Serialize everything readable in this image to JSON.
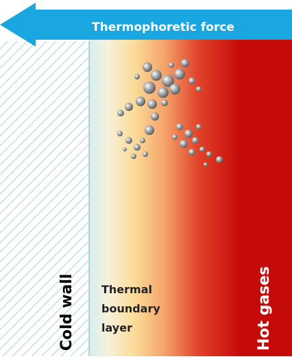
{
  "arrow": {
    "label": "Thermophoretic force"
  },
  "wall": {
    "label": "Cold wall"
  },
  "boundary_layer": {
    "lines": [
      "Thermal",
      "boundary",
      "layer"
    ]
  },
  "gas": {
    "label": "Hot gases"
  }
}
